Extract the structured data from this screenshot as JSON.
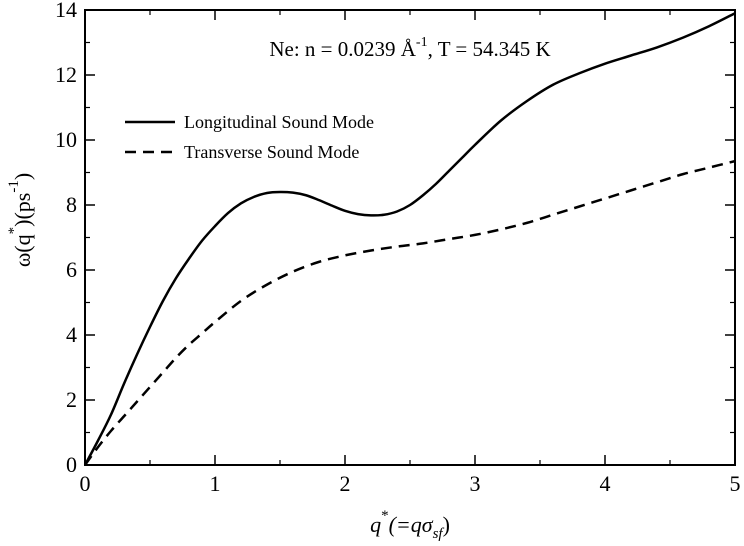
{
  "chart_data": {
    "type": "line",
    "annotation": {
      "prefix": "Ne: n = 0.0239 Å",
      "superscript": "-1",
      "suffix": ", T = 54.345 K"
    },
    "xlabel": {
      "main": "q",
      "sup": "*",
      "paren": "(=qσ",
      "sub": "sf",
      "close": ")"
    },
    "ylabel": {
      "prefix": "ω(q",
      "sup1": "*",
      "mid": ")(ps",
      "sup2": "-1",
      "close": ")"
    },
    "xlim": [
      0,
      5
    ],
    "ylim": [
      0,
      14
    ],
    "xticks": [
      0,
      1,
      2,
      3,
      4,
      5
    ],
    "yticks": [
      0,
      2,
      4,
      6,
      8,
      10,
      12,
      14
    ],
    "legend_position": "upper-left",
    "series": [
      {
        "name": "Longitudinal Sound Mode",
        "style": "solid",
        "color": "#000000",
        "x": [
          0,
          0.1,
          0.2,
          0.3,
          0.4,
          0.5,
          0.6,
          0.7,
          0.8,
          0.9,
          1.0,
          1.1,
          1.2,
          1.3,
          1.4,
          1.5,
          1.6,
          1.7,
          1.8,
          1.9,
          2.0,
          2.1,
          2.2,
          2.3,
          2.4,
          2.5,
          2.6,
          2.7,
          2.8,
          2.9,
          3.0,
          3.2,
          3.4,
          3.6,
          3.8,
          4.0,
          4.2,
          4.4,
          4.6,
          4.8,
          5.0
        ],
        "y": [
          0,
          0.75,
          1.55,
          2.5,
          3.4,
          4.25,
          5.05,
          5.75,
          6.35,
          6.9,
          7.35,
          7.75,
          8.05,
          8.25,
          8.37,
          8.4,
          8.38,
          8.3,
          8.15,
          7.98,
          7.82,
          7.72,
          7.68,
          7.7,
          7.8,
          8.0,
          8.3,
          8.65,
          9.05,
          9.45,
          9.85,
          10.6,
          11.2,
          11.7,
          12.05,
          12.35,
          12.6,
          12.85,
          13.15,
          13.5,
          13.9
        ]
      },
      {
        "name": "Transverse Sound Mode",
        "style": "dashed",
        "color": "#000000",
        "x": [
          0,
          0.1,
          0.2,
          0.3,
          0.4,
          0.5,
          0.6,
          0.7,
          0.8,
          0.9,
          1.0,
          1.2,
          1.4,
          1.6,
          1.8,
          2.0,
          2.2,
          2.4,
          2.6,
          2.8,
          3.0,
          3.2,
          3.4,
          3.6,
          3.8,
          4.0,
          4.2,
          4.4,
          4.6,
          4.8,
          5.0
        ],
        "y": [
          0,
          0.55,
          1.05,
          1.5,
          1.95,
          2.4,
          2.85,
          3.3,
          3.7,
          4.05,
          4.4,
          5.05,
          5.55,
          5.95,
          6.25,
          6.45,
          6.6,
          6.72,
          6.82,
          6.95,
          7.08,
          7.25,
          7.45,
          7.7,
          7.95,
          8.2,
          8.45,
          8.7,
          8.95,
          9.15,
          9.35
        ]
      }
    ]
  }
}
